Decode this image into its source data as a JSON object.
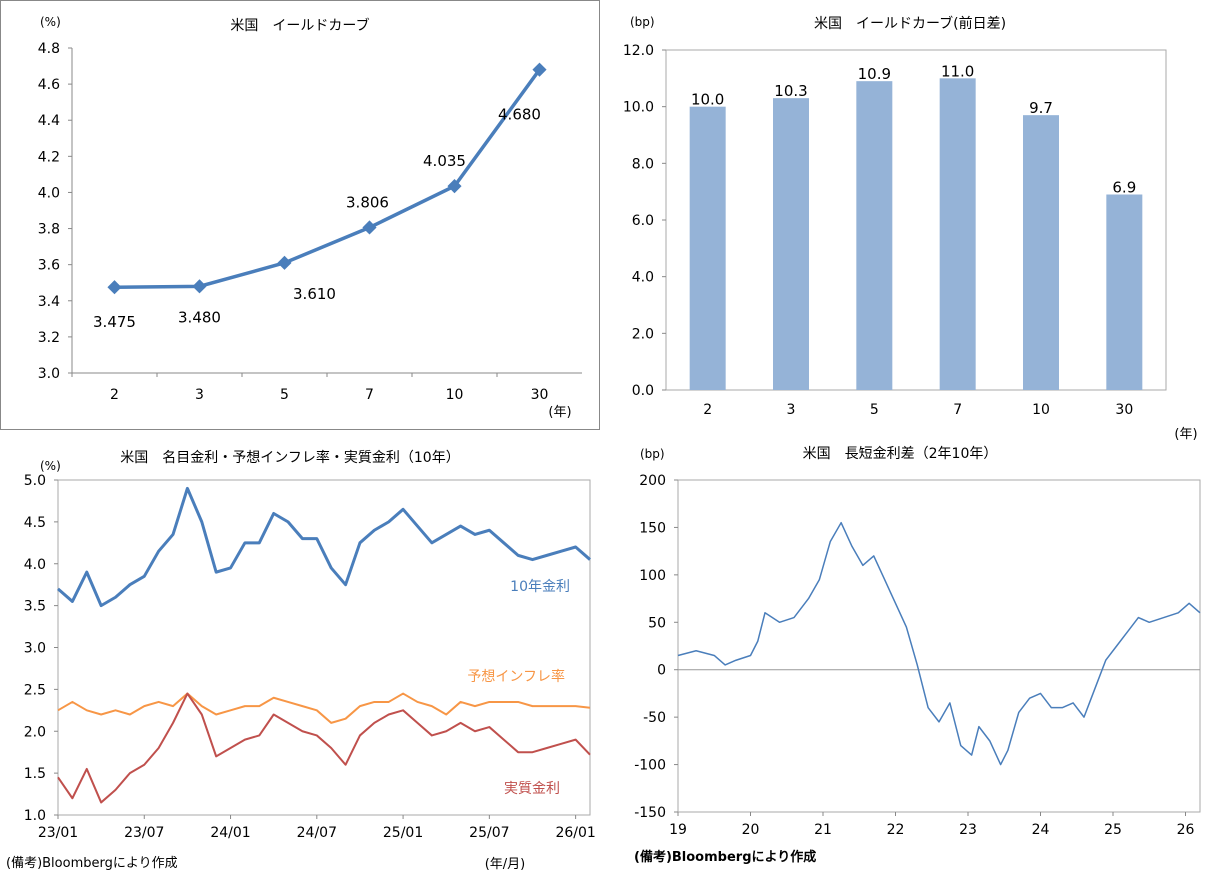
{
  "chart_data": [
    {
      "type": "line",
      "title": "米国　イールドカーブ",
      "ylabel": "(%)",
      "xlabel": "(年)",
      "categories": [
        "2",
        "3",
        "5",
        "7",
        "10",
        "30"
      ],
      "values": [
        3.475,
        3.48,
        3.61,
        3.806,
        4.035,
        4.68
      ],
      "data_labels": [
        "3.475",
        "3.480",
        "3.610",
        "3.806",
        "4.035",
        "4.680"
      ],
      "ylim": [
        3.0,
        4.8
      ],
      "yticks": [
        "3.0",
        "3.2",
        "3.4",
        "3.6",
        "3.8",
        "4.0",
        "4.2",
        "4.4",
        "4.6",
        "4.8"
      ],
      "color": "#4a7ebb",
      "grid": false
    },
    {
      "type": "bar",
      "title": "米国　イールドカーブ(前日差)",
      "ylabel": "(bp)",
      "xlabel": "(年)",
      "categories": [
        "2",
        "3",
        "5",
        "7",
        "10",
        "30"
      ],
      "values": [
        10.0,
        10.3,
        10.9,
        11.0,
        9.7,
        6.9
      ],
      "data_labels": [
        "10.0",
        "10.3",
        "10.9",
        "11.0",
        "9.7",
        "6.9"
      ],
      "ylim": [
        0,
        12
      ],
      "yticks": [
        "0.0",
        "2.0",
        "4.0",
        "6.0",
        "8.0",
        "10.0",
        "12.0"
      ],
      "color": "#95b3d7",
      "grid": false
    },
    {
      "type": "line",
      "title": "米国　名目金利・予想インフレ率・実質金利（10年）",
      "ylabel": "(%)",
      "xlabel": "(年/月)",
      "ylim": [
        1.0,
        5.0
      ],
      "yticks": [
        "1.0",
        "1.5",
        "2.0",
        "2.5",
        "3.0",
        "3.5",
        "4.0",
        "4.5",
        "5.0"
      ],
      "xticks": [
        "23/01",
        "23/07",
        "24/01",
        "24/07",
        "25/01",
        "25/07",
        "26/01"
      ],
      "grid": false,
      "series": [
        {
          "name": "10年金利",
          "color": "#4a7ebb",
          "x": [
            "23/01",
            "23/02",
            "23/03",
            "23/04",
            "23/05",
            "23/06",
            "23/07",
            "23/08",
            "23/09",
            "23/10",
            "23/11",
            "23/12",
            "24/01",
            "24/02",
            "24/03",
            "24/04",
            "24/05",
            "24/06",
            "24/07",
            "24/08",
            "24/09",
            "24/10",
            "24/11",
            "24/12",
            "25/01",
            "25/02",
            "25/03",
            "25/04",
            "25/05",
            "25/06",
            "25/07",
            "25/08",
            "25/09",
            "25/10",
            "25/11",
            "25/12",
            "26/01",
            "26/02"
          ],
          "values": [
            3.7,
            3.55,
            3.9,
            3.5,
            3.6,
            3.75,
            3.85,
            4.15,
            4.35,
            4.9,
            4.5,
            3.9,
            3.95,
            4.25,
            4.25,
            4.6,
            4.5,
            4.3,
            4.3,
            3.95,
            3.75,
            4.25,
            4.4,
            4.5,
            4.65,
            4.45,
            4.25,
            4.35,
            4.45,
            4.35,
            4.4,
            4.25,
            4.1,
            4.05,
            4.1,
            4.15,
            4.2,
            4.05
          ]
        },
        {
          "name": "予想インフレ率",
          "color": "#f79646",
          "x": [
            "23/01",
            "23/02",
            "23/03",
            "23/04",
            "23/05",
            "23/06",
            "23/07",
            "23/08",
            "23/09",
            "23/10",
            "23/11",
            "23/12",
            "24/01",
            "24/02",
            "24/03",
            "24/04",
            "24/05",
            "24/06",
            "24/07",
            "24/08",
            "24/09",
            "24/10",
            "24/11",
            "24/12",
            "25/01",
            "25/02",
            "25/03",
            "25/04",
            "25/05",
            "25/06",
            "25/07",
            "25/08",
            "25/09",
            "25/10",
            "25/11",
            "25/12",
            "26/01",
            "26/02"
          ],
          "values": [
            2.25,
            2.35,
            2.25,
            2.2,
            2.25,
            2.2,
            2.3,
            2.35,
            2.3,
            2.45,
            2.3,
            2.2,
            2.25,
            2.3,
            2.3,
            2.4,
            2.35,
            2.3,
            2.25,
            2.1,
            2.15,
            2.3,
            2.35,
            2.35,
            2.45,
            2.35,
            2.3,
            2.2,
            2.35,
            2.3,
            2.35,
            2.35,
            2.35,
            2.3,
            2.3,
            2.3,
            2.3,
            2.28
          ]
        },
        {
          "name": "実質金利",
          "color": "#c0504d",
          "x": [
            "23/01",
            "23/02",
            "23/03",
            "23/04",
            "23/05",
            "23/06",
            "23/07",
            "23/08",
            "23/09",
            "23/10",
            "23/11",
            "23/12",
            "24/01",
            "24/02",
            "24/03",
            "24/04",
            "24/05",
            "24/06",
            "24/07",
            "24/08",
            "24/09",
            "24/10",
            "24/11",
            "24/12",
            "25/01",
            "25/02",
            "25/03",
            "25/04",
            "25/05",
            "25/06",
            "25/07",
            "25/08",
            "25/09",
            "25/10",
            "25/11",
            "25/12",
            "26/01",
            "26/02"
          ],
          "values": [
            1.45,
            1.2,
            1.55,
            1.15,
            1.3,
            1.5,
            1.6,
            1.8,
            2.1,
            2.45,
            2.2,
            1.7,
            1.8,
            1.9,
            1.95,
            2.2,
            2.1,
            2.0,
            1.95,
            1.8,
            1.6,
            1.95,
            2.1,
            2.2,
            2.25,
            2.1,
            1.95,
            2.0,
            2.1,
            2.0,
            2.05,
            1.9,
            1.75,
            1.75,
            1.8,
            1.85,
            1.9,
            1.72
          ]
        }
      ]
    },
    {
      "type": "line",
      "title": "米国　長短金利差（2年10年）",
      "ylabel": "(bp)",
      "ylim": [
        -150,
        200
      ],
      "yticks": [
        "-150",
        "-100",
        "-50",
        "0",
        "50",
        "100",
        "150",
        "200"
      ],
      "xticks": [
        "19",
        "20",
        "21",
        "22",
        "23",
        "24",
        "25",
        "26"
      ],
      "zero_line": true,
      "grid": false,
      "series": [
        {
          "name": "",
          "color": "#4a7ebb",
          "x": [
            19.0,
            19.25,
            19.5,
            19.65,
            19.8,
            20.0,
            20.1,
            20.2,
            20.4,
            20.6,
            20.8,
            20.95,
            21.1,
            21.25,
            21.4,
            21.55,
            21.7,
            21.85,
            22.0,
            22.15,
            22.3,
            22.45,
            22.6,
            22.75,
            22.9,
            23.05,
            23.15,
            23.3,
            23.45,
            23.55,
            23.7,
            23.85,
            24.0,
            24.15,
            24.3,
            24.45,
            24.6,
            24.75,
            24.9,
            25.05,
            25.2,
            25.35,
            25.5,
            25.7,
            25.9,
            26.05,
            26.2
          ],
          "values": [
            15,
            20,
            15,
            5,
            10,
            15,
            30,
            60,
            50,
            55,
            75,
            95,
            135,
            155,
            130,
            110,
            120,
            95,
            70,
            45,
            5,
            -40,
            -55,
            -35,
            -80,
            -90,
            -60,
            -75,
            -100,
            -85,
            -45,
            -30,
            -25,
            -40,
            -40,
            -35,
            -50,
            -20,
            10,
            25,
            40,
            55,
            50,
            55,
            60,
            70,
            60
          ]
        }
      ]
    }
  ],
  "footnotes": {
    "left": "(備考)Bloombergにより作成",
    "right": "(備考)Bloombergにより作成"
  }
}
